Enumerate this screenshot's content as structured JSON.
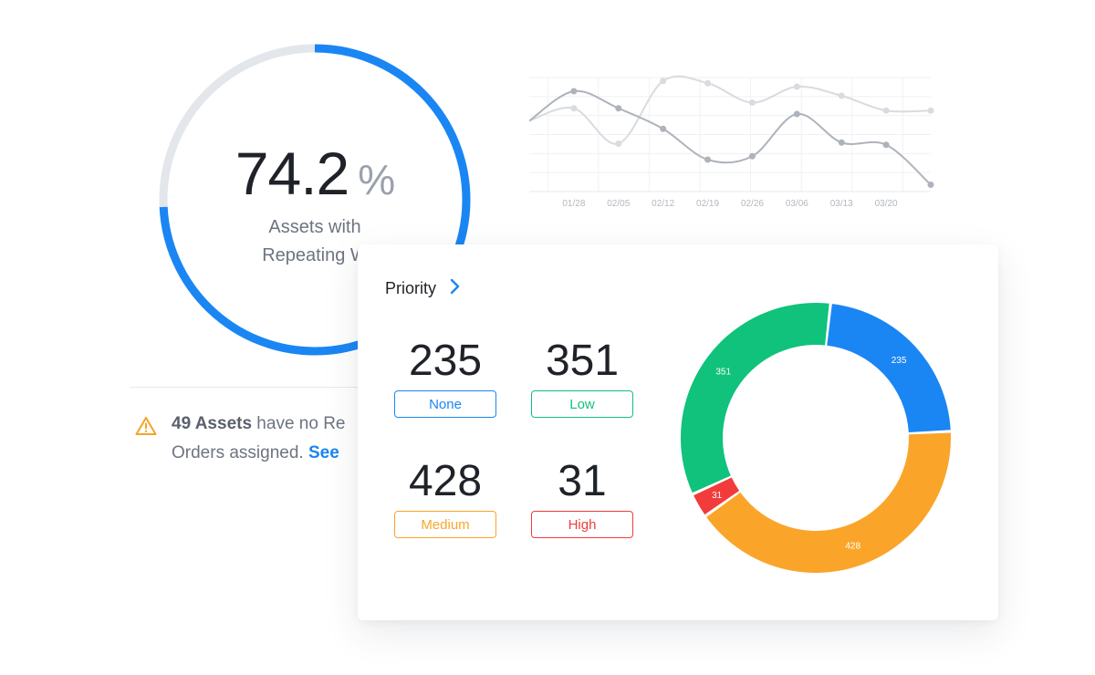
{
  "colors": {
    "accent": "#1a86f3",
    "gauge_track": "#e3e6ea",
    "none": "#1a86f3",
    "low": "#10c27c",
    "medium": "#faa52a",
    "high": "#f23b3b",
    "warning": "#f3a526",
    "line_dark": "#aeb3bb",
    "line_light": "#d8dbdf"
  },
  "gauge": {
    "value": "74.2",
    "unit": "%",
    "fraction": 0.742,
    "label_line_1": "Assets with",
    "label_line_2": "Repeating W"
  },
  "alert": {
    "icon": "warning-triangle-icon",
    "count": "49 Assets",
    "text_1": " have no Re",
    "text_2": "Orders assigned. ",
    "link": "See"
  },
  "line_chart": {
    "x_labels": [
      "01/28",
      "02/05",
      "02/12",
      "02/19",
      "02/26",
      "03/06",
      "03/13",
      "03/20"
    ],
    "series": [
      {
        "values": [
          62,
          88,
          73,
          55,
          28,
          31,
          68,
          43,
          41,
          6
        ]
      },
      {
        "values": [
          62,
          73,
          42,
          97,
          95,
          78,
          92,
          84,
          71,
          71
        ]
      }
    ]
  },
  "priority": {
    "title": "Priority",
    "chevron_icon": "chevron-right-icon",
    "stats": {
      "none": {
        "count": "235",
        "label": "None"
      },
      "low": {
        "count": "351",
        "label": "Low"
      },
      "medium": {
        "count": "428",
        "label": "Medium"
      },
      "high": {
        "count": "31",
        "label": "High"
      }
    }
  },
  "chart_data": {
    "type": "pie",
    "categories": [
      "None",
      "Medium",
      "High",
      "Low"
    ],
    "values": [
      235,
      428,
      31,
      351
    ],
    "labels": [
      "235",
      "428",
      "31",
      "351"
    ],
    "colors": [
      "#1a86f3",
      "#faa52a",
      "#f23b3b",
      "#10c27c"
    ],
    "donut": true
  }
}
